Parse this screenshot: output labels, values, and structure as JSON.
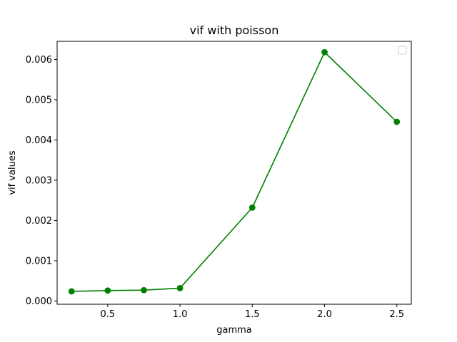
{
  "chart_data": {
    "type": "line",
    "title": "vif with poisson",
    "xlabel": "gamma",
    "ylabel": "vif values",
    "xlim": [
      0.15,
      2.6
    ],
    "ylim": [
      -8e-05,
      0.00645
    ],
    "xticks": [
      0.5,
      1.0,
      1.5,
      2.0,
      2.5
    ],
    "xtick_labels": [
      "0.5",
      "1.0",
      "1.5",
      "2.0",
      "2.5"
    ],
    "yticks": [
      0.0,
      0.001,
      0.002,
      0.003,
      0.004,
      0.005,
      0.006
    ],
    "ytick_labels": [
      "0.000",
      "0.001",
      "0.002",
      "0.003",
      "0.004",
      "0.005",
      "0.006"
    ],
    "grid": false,
    "legend": {
      "placement": "top-right",
      "entries": []
    },
    "series": [
      {
        "color": "#008000",
        "marker": "circle",
        "x": [
          0.25,
          0.5,
          0.75,
          1.0,
          1.5,
          2.0,
          2.5
        ],
        "y": [
          0.00024,
          0.00026,
          0.00027,
          0.00032,
          0.00232,
          0.00618,
          0.00445
        ]
      }
    ]
  }
}
